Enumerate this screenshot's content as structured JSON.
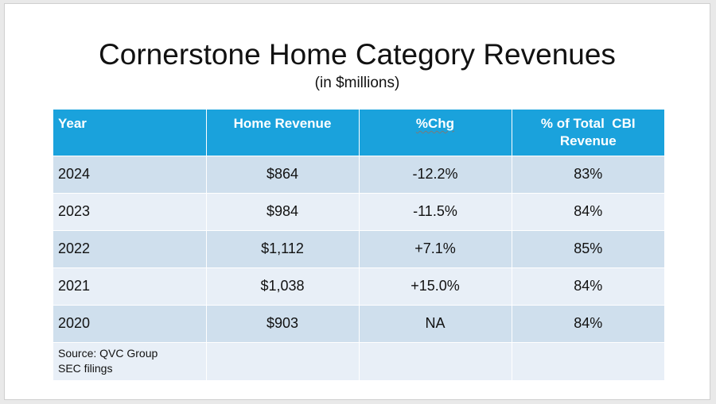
{
  "slide": {
    "title": "Cornerstone Home Category Revenues",
    "subtitle": "(in $millions)"
  },
  "table": {
    "headers": {
      "year": "Year",
      "home_revenue": "Home Revenue",
      "pct_chg": "%Chg",
      "pct_total_line1": "% of Total  CBI",
      "pct_total_line2": "Revenue"
    },
    "rows": [
      {
        "year": "2024",
        "home_revenue": "$864",
        "pct_chg": "-12.2%",
        "pct_total": "83%"
      },
      {
        "year": "2023",
        "home_revenue": "$984",
        "pct_chg": "-11.5%",
        "pct_total": "84%"
      },
      {
        "year": "2022",
        "home_revenue": "$1,112",
        "pct_chg": "+7.1%",
        "pct_total": "85%"
      },
      {
        "year": "2021",
        "home_revenue": "$1,038",
        "pct_chg": "+15.0%",
        "pct_total": "84%"
      },
      {
        "year": "2020",
        "home_revenue": "$903",
        "pct_chg": "NA",
        "pct_total": "84%"
      }
    ],
    "source_line1": "Source: QVC Group",
    "source_line2": "SEC filings"
  },
  "colors": {
    "header_bg": "#1aa2dc",
    "row_dark": "#cfdfed",
    "row_light": "#e8eff7"
  }
}
